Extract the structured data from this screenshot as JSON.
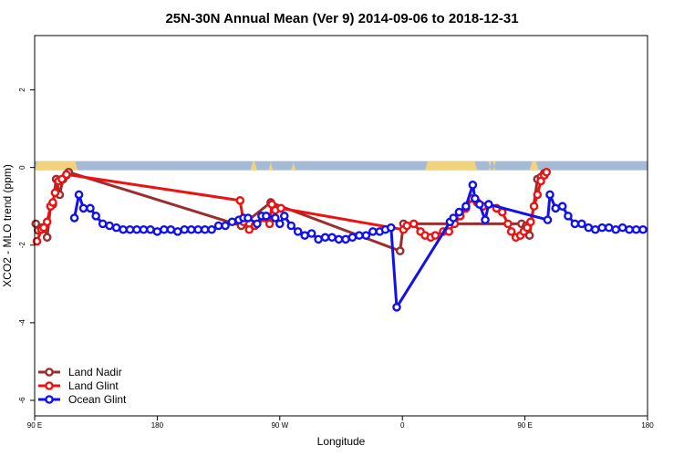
{
  "chart_data": {
    "type": "line",
    "title": "25N-30N Annual Mean (Ver 9)   2014-09-06 to 2018-12-31",
    "xlabel": "Longitude",
    "ylabel": "XCO2 - MLO trend (ppm)",
    "xlim": [
      -90,
      180
    ],
    "ylim": [
      -6.4,
      3.4
    ],
    "x_ticks": [
      {
        "value": -90,
        "label": "90 E"
      },
      {
        "value": -36,
        "label": "180"
      },
      {
        "value": 18,
        "label": "90 W"
      },
      {
        "value": 72,
        "label": "0"
      },
      {
        "value": 126,
        "label": "90 E"
      },
      {
        "value": 180,
        "label": "180"
      }
    ],
    "y_ticks": [
      {
        "value": -6,
        "label": "-6"
      },
      {
        "value": -4,
        "label": "-4"
      },
      {
        "value": -2,
        "label": "-2"
      },
      {
        "value": 0,
        "label": "0"
      },
      {
        "value": 2,
        "label": "2"
      }
    ],
    "land_mask": {
      "land_color": "#f2d27a",
      "ocean_color": "#a4bbd8",
      "land_segments": [
        [
          -90,
          -71
        ],
        [
          5,
          8
        ],
        [
          13,
          15
        ],
        [
          23,
          25
        ],
        [
          82,
          105
        ],
        [
          110,
          111
        ],
        [
          112,
          113
        ],
        [
          128,
          132
        ]
      ]
    },
    "series": [
      {
        "name": "Land Nadir",
        "color": "#9b2d2d",
        "points": [
          [
            -89.5,
            -1.45
          ],
          [
            -88.5,
            -1.62
          ],
          [
            -87,
            -1.55
          ],
          [
            -85.5,
            -1.55
          ],
          [
            -84.5,
            -1.8
          ],
          [
            -83,
            -1.0
          ],
          [
            -82,
            -0.95
          ],
          [
            -80.5,
            -0.3
          ],
          [
            -79,
            -0.7
          ],
          [
            -77.5,
            -0.3
          ],
          [
            -76,
            -0.2
          ],
          [
            -75,
            -0.12
          ],
          [
            1,
            -1.5
          ],
          [
            14,
            -0.9
          ],
          [
            71,
            -2.15
          ],
          [
            72.5,
            -1.45
          ],
          [
            124.5,
            -1.45
          ],
          [
            126.5,
            -1.5
          ],
          [
            128,
            -1.75
          ],
          [
            131.5,
            -0.3
          ],
          [
            133,
            -0.25
          ],
          [
            134.5,
            -0.15
          ]
        ]
      },
      {
        "name": "Land Glint",
        "color": "#ee1111",
        "points": [
          [
            -89,
            -1.9
          ],
          [
            -87,
            -1.6
          ],
          [
            -86,
            -1.55
          ],
          [
            -84.5,
            -1.4
          ],
          [
            -83,
            -1.0
          ],
          [
            -82,
            -0.9
          ],
          [
            -81,
            -0.65
          ],
          [
            -79.5,
            -0.35
          ],
          [
            -78,
            -0.3
          ],
          [
            -76,
            -0.18
          ],
          [
            0.5,
            -0.85
          ],
          [
            2,
            -1.4
          ],
          [
            4.5,
            -1.6
          ],
          [
            7,
            -1.5
          ],
          [
            11.5,
            -1.3
          ],
          [
            13.5,
            -1.45
          ],
          [
            14.5,
            -0.95
          ],
          [
            16,
            -1.1
          ],
          [
            18.5,
            -1.05
          ],
          [
            72.5,
            -1.6
          ],
          [
            74,
            -1.5
          ],
          [
            77,
            -1.45
          ],
          [
            80,
            -1.65
          ],
          [
            82,
            -1.75
          ],
          [
            84.5,
            -1.8
          ],
          [
            86.5,
            -1.75
          ],
          [
            90,
            -1.65
          ],
          [
            92.5,
            -1.65
          ],
          [
            95,
            -1.45
          ],
          [
            97.5,
            -1.25
          ],
          [
            100,
            -1.05
          ],
          [
            102.5,
            -0.8
          ],
          [
            105,
            -0.9
          ],
          [
            107.5,
            -1.0
          ],
          [
            110,
            -0.95
          ],
          [
            113.5,
            -1.05
          ],
          [
            116,
            -1.15
          ],
          [
            118.5,
            -1.45
          ],
          [
            120,
            -1.65
          ],
          [
            122,
            -1.8
          ],
          [
            124,
            -1.75
          ],
          [
            125.5,
            -1.65
          ],
          [
            127,
            -1.55
          ],
          [
            128.5,
            -1.4
          ],
          [
            130,
            -1.0
          ],
          [
            131.5,
            -0.7
          ],
          [
            133,
            -0.35
          ],
          [
            134.5,
            -0.2
          ],
          [
            135.5,
            -0.12
          ]
        ]
      },
      {
        "name": "Ocean Glint",
        "color": "#1111ee",
        "points": [
          [
            -72.5,
            -1.3
          ],
          [
            -70.5,
            -0.7
          ],
          [
            -68.5,
            -1.05
          ],
          [
            -65.5,
            -1.05
          ],
          [
            -63,
            -1.25
          ],
          [
            -60,
            -1.45
          ],
          [
            -57,
            -1.5
          ],
          [
            -54,
            -1.55
          ],
          [
            -51,
            -1.6
          ],
          [
            -48,
            -1.6
          ],
          [
            -45,
            -1.6
          ],
          [
            -42,
            -1.6
          ],
          [
            -39,
            -1.6
          ],
          [
            -36,
            -1.65
          ],
          [
            -33,
            -1.6
          ],
          [
            -30,
            -1.6
          ],
          [
            -27,
            -1.65
          ],
          [
            -24,
            -1.6
          ],
          [
            -21,
            -1.6
          ],
          [
            -18,
            -1.6
          ],
          [
            -15,
            -1.6
          ],
          [
            -12,
            -1.6
          ],
          [
            -9,
            -1.5
          ],
          [
            -6,
            -1.5
          ],
          [
            -3,
            -1.4
          ],
          [
            0,
            -1.35
          ],
          [
            2,
            -1.3
          ],
          [
            4,
            -1.3
          ],
          [
            8,
            -1.45
          ],
          [
            10,
            -1.25
          ],
          [
            12,
            -1.25
          ],
          [
            16,
            -1.3
          ],
          [
            18,
            -1.45
          ],
          [
            20,
            -1.25
          ],
          [
            23,
            -1.5
          ],
          [
            26,
            -1.65
          ],
          [
            29,
            -1.75
          ],
          [
            32,
            -1.7
          ],
          [
            35,
            -1.85
          ],
          [
            38,
            -1.8
          ],
          [
            41,
            -1.8
          ],
          [
            44,
            -1.85
          ],
          [
            47,
            -1.85
          ],
          [
            50,
            -1.8
          ],
          [
            53,
            -1.75
          ],
          [
            56,
            -1.75
          ],
          [
            59,
            -1.65
          ],
          [
            62,
            -1.65
          ],
          [
            64.5,
            -1.6
          ],
          [
            67,
            -1.55
          ],
          [
            69.5,
            -3.6
          ],
          [
            93,
            -1.4
          ],
          [
            94.5,
            -1.3
          ],
          [
            97,
            -1.15
          ],
          [
            100,
            -1.0
          ],
          [
            103,
            -0.45
          ],
          [
            104,
            -0.8
          ],
          [
            106,
            -0.95
          ],
          [
            108.5,
            -1.35
          ],
          [
            110,
            -0.95
          ],
          [
            136,
            -1.35
          ],
          [
            137,
            -0.7
          ],
          [
            139.5,
            -1.05
          ],
          [
            142.5,
            -1.0
          ],
          [
            145,
            -1.25
          ],
          [
            148,
            -1.45
          ],
          [
            151,
            -1.45
          ],
          [
            154,
            -1.55
          ],
          [
            157,
            -1.6
          ],
          [
            160,
            -1.55
          ],
          [
            163,
            -1.55
          ],
          [
            166,
            -1.6
          ],
          [
            169,
            -1.55
          ],
          [
            172,
            -1.6
          ],
          [
            175,
            -1.6
          ],
          [
            178,
            -1.6
          ]
        ]
      }
    ],
    "legend": {
      "position": "bottom-left"
    }
  }
}
